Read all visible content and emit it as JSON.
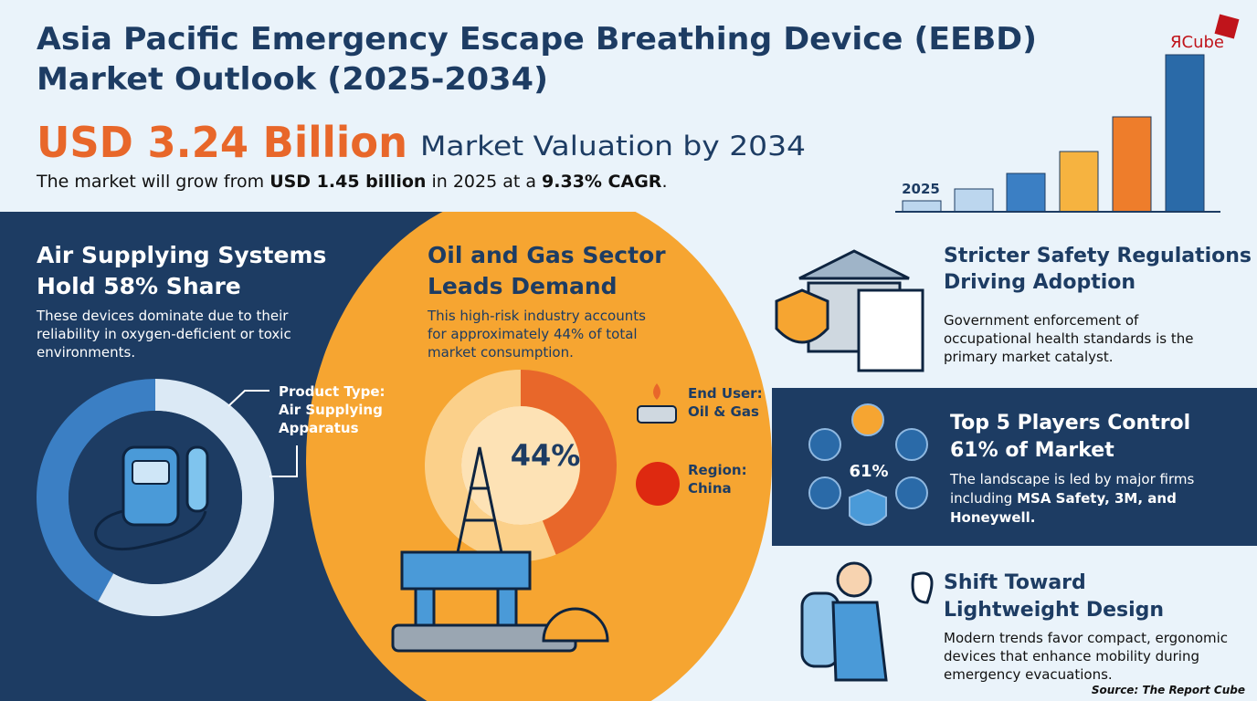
{
  "header": {
    "title": [
      "Asia Pacific Emergency Escape Breathing Device (EEBD)",
      "Market Outlook (2025-2034)"
    ],
    "valuation": "USD 3.24 Billion",
    "valuation_caption": "Market Valuation by 2034",
    "summary": [
      "The market will grow from ",
      "USD 1.45 billion",
      " in 2025 at a ",
      "9.33% CAGR",
      "."
    ],
    "chart_label": "2025",
    "brand": "ЯCube"
  },
  "product": {
    "title": [
      "Air Supplying Systems",
      "Hold 58% Share"
    ],
    "text": [
      "These devices dominate due to their",
      "reliability in oxygen-deficient or toxic",
      "environments."
    ],
    "share": 58,
    "callout": [
      "Product Type:",
      "Air Supplying",
      "Apparatus"
    ]
  },
  "end_user": {
    "title": [
      "Oil and Gas Sector",
      "Leads Demand"
    ],
    "text": [
      "This high-risk industry accounts",
      "for approximately 44% of total",
      "market consumption."
    ],
    "share": 44,
    "share_label": "44%",
    "callouts": [
      [
        "End User:",
        "Oil & Gas"
      ],
      [
        "Region:",
        "China"
      ]
    ]
  },
  "trends": [
    {
      "title": [
        "Stricter Safety Regulations",
        "Driving Adoption"
      ],
      "text": [
        "Government enforcement of",
        "occupational health standards is the",
        "primary market catalyst."
      ]
    },
    {
      "title": [
        "Top 5 Players Control",
        "61% of Market"
      ],
      "badge": "61%",
      "text": [
        "The landscape is led by major firms",
        "including ",
        "MSA Safety, 3M, and",
        "Honeywell."
      ]
    },
    {
      "title": [
        "Shift Toward",
        "Lightweight Design"
      ],
      "text": [
        "Modern trends favor compact, ergonomic",
        "devices that enhance mobility during",
        "emergency evacuations."
      ]
    }
  ],
  "source": "Source: The Report Cube"
}
